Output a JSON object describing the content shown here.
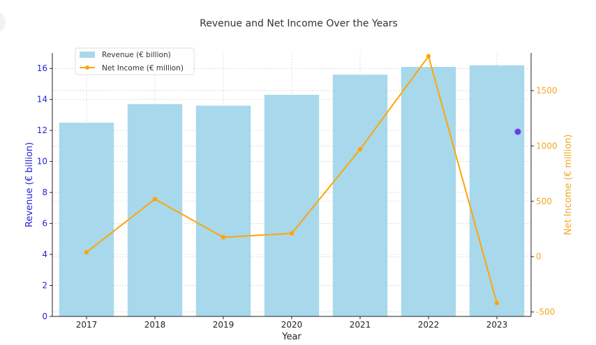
{
  "chart_data": {
    "type": "bar+line",
    "title": "Revenue and Net Income Over the Years",
    "xlabel": "Year",
    "categories": [
      "2017",
      "2018",
      "2019",
      "2020",
      "2021",
      "2022",
      "2023"
    ],
    "left_axis": {
      "label": "Revenue (€ billion)",
      "ylim": [
        0,
        17
      ],
      "ticks": [
        0,
        2,
        4,
        6,
        8,
        10,
        12,
        14,
        16
      ],
      "color": "#1f1fd6"
    },
    "right_axis": {
      "label": "Net Income (€ million)",
      "ylim": [
        -540,
        1840
      ],
      "ticks": [
        -500,
        0,
        500,
        1000,
        1500
      ],
      "color": "#f5a623"
    },
    "series": [
      {
        "name": "Revenue (€ billion)",
        "type": "bar",
        "axis": "left",
        "color": "#a8d8ec",
        "values": [
          12.5,
          13.7,
          13.6,
          14.3,
          15.6,
          16.1,
          16.2
        ]
      },
      {
        "name": "Net Income (€ million)",
        "type": "line",
        "axis": "right",
        "color": "#ffa500",
        "values": [
          40,
          520,
          175,
          210,
          970,
          1810,
          -420
        ]
      }
    ],
    "grid": true,
    "legend_position": "top-left",
    "marker_color": "#6a3fe0"
  }
}
